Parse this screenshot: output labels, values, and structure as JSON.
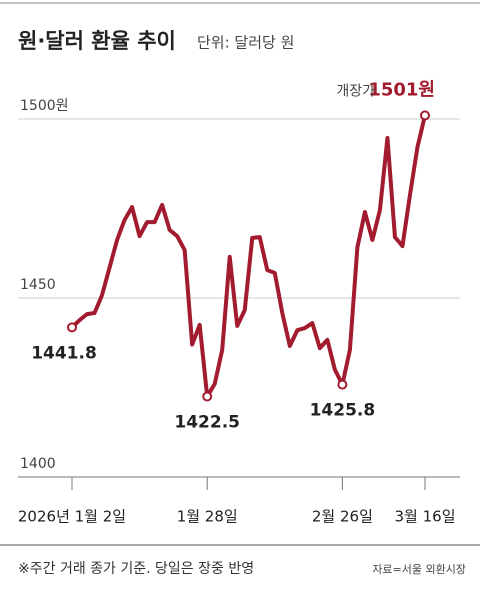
{
  "chart_data": {
    "type": "line",
    "title": "원·달러 환율 추이",
    "subtitle": "단위: 달러당 원",
    "categories": [
      "2026년 1월 2일",
      null,
      null,
      null,
      null,
      null,
      null,
      null,
      null,
      null,
      null,
      null,
      null,
      null,
      null,
      null,
      null,
      null,
      "1월 28일",
      null,
      null,
      null,
      null,
      null,
      null,
      null,
      null,
      null,
      null,
      null,
      null,
      null,
      null,
      null,
      null,
      null,
      "2월 26일",
      null,
      null,
      null,
      null,
      null,
      null,
      null,
      null,
      null,
      null,
      "3월 16일"
    ],
    "series": [
      {
        "name": "원·달러 환율",
        "color": "#a31b2e",
        "values": [
          1441.8,
          1443.8,
          1445.5,
          1445.8,
          1450.8,
          1458.5,
          1466.2,
          1471.8,
          1475.4,
          1467.3,
          1471.2,
          1471.2,
          1476,
          1469,
          1467.3,
          1463.4,
          1437,
          1442.5,
          1422.5,
          1426,
          1435.5,
          1461.5,
          1442.2,
          1446.6,
          1466.8,
          1467,
          1457.8,
          1457,
          1445.8,
          1436.6,
          1441,
          1441.6,
          1443,
          1436,
          1438.3,
          1430,
          1425.8,
          1435.5,
          1464.2,
          1474,
          1466.2,
          1474.6,
          1494.7,
          1467,
          1464.5,
          1478.8,
          1492.2,
          1501
        ],
        "value_labels": [
          "1441.8",
          null,
          null,
          null,
          null,
          null,
          null,
          null,
          null,
          null,
          null,
          null,
          null,
          null,
          null,
          null,
          null,
          null,
          "1422.5",
          null,
          null,
          null,
          null,
          null,
          null,
          null,
          null,
          null,
          null,
          null,
          null,
          null,
          null,
          null,
          null,
          null,
          "1425.8",
          null,
          null,
          null,
          null,
          null,
          null,
          null,
          null,
          null,
          null,
          "1501원"
        ]
      }
    ],
    "annotation": "개장가",
    "ylim": [
      1400,
      1500
    ],
    "yticks": [
      1400,
      1450,
      {
        "value": 1500,
        "label": "1500원"
      }
    ],
    "grid": true,
    "footnote": "※주간 거래 종가 기준. 당일은 장중 반영",
    "source": "자료=서울 외환시장"
  }
}
